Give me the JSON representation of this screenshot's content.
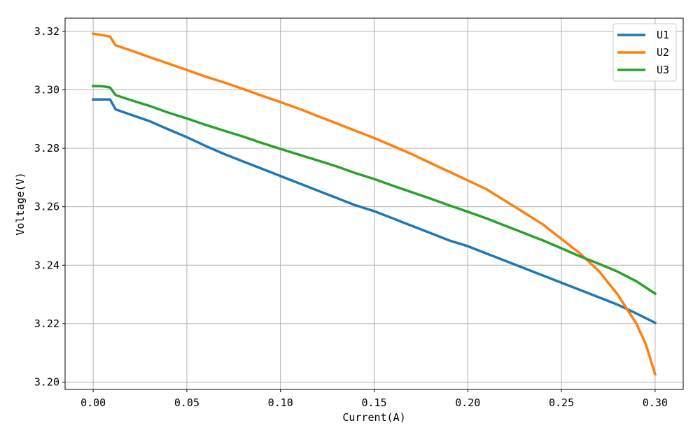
{
  "chart_data": {
    "type": "line",
    "title": "",
    "xlabel": "Current(A)",
    "ylabel": "Voltage(V)",
    "xlim": [
      -0.015,
      0.315
    ],
    "ylim": [
      3.1975,
      3.3245
    ],
    "grid": true,
    "legend_position": "top-right",
    "xticks": [
      0.0,
      0.05,
      0.1,
      0.15,
      0.2,
      0.25,
      0.3
    ],
    "xtick_labels": [
      "0.00",
      "0.05",
      "0.10",
      "0.15",
      "0.20",
      "0.25",
      "0.30"
    ],
    "yticks": [
      3.2,
      3.22,
      3.24,
      3.26,
      3.28,
      3.3,
      3.32
    ],
    "ytick_labels": [
      "3.20",
      "3.22",
      "3.24",
      "3.26",
      "3.28",
      "3.30",
      "3.32"
    ],
    "series": [
      {
        "name": "U1",
        "color": "#1f77b4",
        "x": [
          0.0,
          0.009,
          0.012,
          0.02,
          0.03,
          0.04,
          0.05,
          0.06,
          0.07,
          0.08,
          0.09,
          0.1,
          0.11,
          0.12,
          0.13,
          0.14,
          0.15,
          0.16,
          0.17,
          0.18,
          0.19,
          0.2,
          0.21,
          0.22,
          0.23,
          0.24,
          0.25,
          0.26,
          0.27,
          0.28,
          0.29,
          0.3
        ],
        "y": [
          3.2967,
          3.2967,
          3.2933,
          3.2915,
          3.2893,
          3.2865,
          3.2838,
          3.2808,
          3.278,
          3.2755,
          3.273,
          3.2705,
          3.268,
          3.2655,
          3.263,
          3.2605,
          3.2585,
          3.256,
          3.2535,
          3.251,
          3.2485,
          3.2465,
          3.244,
          3.2415,
          3.239,
          3.2365,
          3.234,
          3.2315,
          3.229,
          3.2265,
          3.2235,
          3.2203
        ]
      },
      {
        "name": "U2",
        "color": "#ff7f0e",
        "x": [
          0.0,
          0.005,
          0.009,
          0.012,
          0.02,
          0.03,
          0.04,
          0.05,
          0.06,
          0.07,
          0.08,
          0.09,
          0.1,
          0.11,
          0.12,
          0.13,
          0.14,
          0.15,
          0.16,
          0.17,
          0.18,
          0.19,
          0.2,
          0.21,
          0.22,
          0.23,
          0.24,
          0.25,
          0.26,
          0.27,
          0.28,
          0.285,
          0.29,
          0.295,
          0.3
        ],
        "y": [
          3.3192,
          3.3187,
          3.3182,
          3.3152,
          3.3135,
          3.3112,
          3.309,
          3.3068,
          3.3045,
          3.3025,
          3.3003,
          3.298,
          3.2958,
          3.2935,
          3.291,
          3.2885,
          3.286,
          3.2835,
          3.2808,
          3.278,
          3.275,
          3.272,
          3.269,
          3.266,
          3.262,
          3.258,
          3.254,
          3.249,
          3.244,
          3.238,
          3.23,
          3.225,
          3.22,
          3.213,
          3.2027
        ]
      },
      {
        "name": "U3",
        "color": "#2ca02c",
        "x": [
          0.0,
          0.005,
          0.009,
          0.012,
          0.02,
          0.03,
          0.04,
          0.05,
          0.06,
          0.07,
          0.08,
          0.09,
          0.1,
          0.11,
          0.12,
          0.13,
          0.14,
          0.15,
          0.16,
          0.17,
          0.18,
          0.19,
          0.2,
          0.21,
          0.22,
          0.23,
          0.24,
          0.25,
          0.26,
          0.27,
          0.28,
          0.29,
          0.3
        ],
        "y": [
          3.3013,
          3.3012,
          3.3008,
          3.2982,
          3.2965,
          3.2945,
          3.2922,
          3.2902,
          3.288,
          3.286,
          3.284,
          3.2818,
          3.2798,
          3.2778,
          3.2758,
          3.2738,
          3.2715,
          3.2695,
          3.2672,
          3.265,
          3.2628,
          3.2605,
          3.2583,
          3.256,
          3.2535,
          3.251,
          3.2485,
          3.2458,
          3.243,
          3.2405,
          3.2378,
          3.2345,
          3.2303
        ]
      }
    ]
  }
}
